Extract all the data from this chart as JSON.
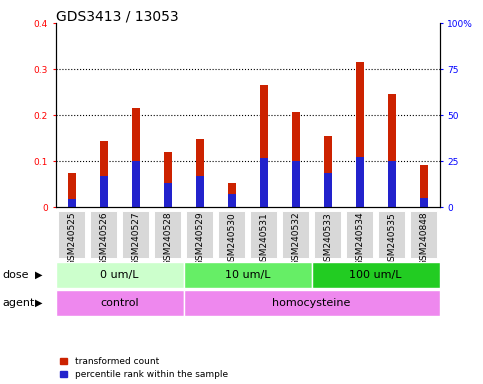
{
  "title": "GDS3413 / 13053",
  "samples": [
    "GSM240525",
    "GSM240526",
    "GSM240527",
    "GSM240528",
    "GSM240529",
    "GSM240530",
    "GSM240531",
    "GSM240532",
    "GSM240533",
    "GSM240534",
    "GSM240535",
    "GSM240848"
  ],
  "red_values": [
    0.075,
    0.145,
    0.215,
    0.12,
    0.148,
    0.052,
    0.265,
    0.208,
    0.155,
    0.315,
    0.247,
    0.093
  ],
  "blue_values": [
    0.018,
    0.068,
    0.1,
    0.052,
    0.068,
    0.028,
    0.107,
    0.1,
    0.075,
    0.11,
    0.1,
    0.02
  ],
  "dose_groups": [
    {
      "label": "0 um/L",
      "start": 0,
      "end": 3
    },
    {
      "label": "10 um/L",
      "start": 4,
      "end": 7
    },
    {
      "label": "100 um/L",
      "start": 8,
      "end": 11
    }
  ],
  "dose_colors": [
    "#ccffcc",
    "#66ee66",
    "#22cc22"
  ],
  "agent_color": "#ee88ee",
  "ylim_left": [
    0,
    0.4
  ],
  "ylim_right": [
    0,
    100
  ],
  "yticks_left": [
    0.0,
    0.1,
    0.2,
    0.3,
    0.4
  ],
  "yticks_right": [
    0,
    25,
    50,
    75,
    100
  ],
  "ytick_labels_left": [
    "0",
    "0.1",
    "0.2",
    "0.3",
    "0.4"
  ],
  "ytick_labels_right": [
    "0",
    "25",
    "50",
    "75",
    "100%"
  ],
  "red_color": "#cc2200",
  "blue_color": "#2222cc",
  "red_bar_width": 0.25,
  "blue_bar_width": 0.25,
  "legend_red": "transformed count",
  "legend_blue": "percentile rank within the sample",
  "dose_label": "dose",
  "agent_label": "agent",
  "title_fontsize": 10,
  "tick_fontsize": 6.5,
  "label_fontsize": 8,
  "grid_color": "black",
  "grid_linestyle": ":",
  "grid_linewidth": 0.8
}
